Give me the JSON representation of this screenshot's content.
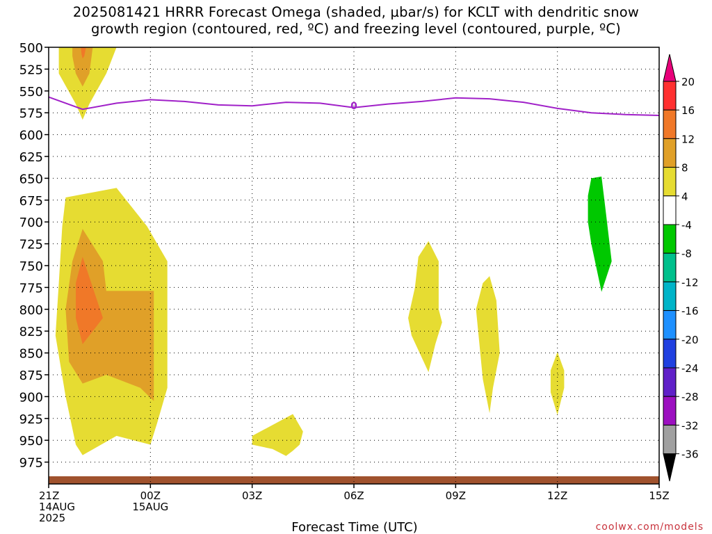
{
  "title": {
    "line1": "2025081421 HRRR Forecast Omega (shaded, µbar/s) for KCLT with dendritic snow",
    "line2": "growth region (contoured, red, ºC) and freezing level (contoured, purple, ºC)"
  },
  "credit": "coolwx.com/models",
  "chart_data": {
    "type": "heatmap",
    "title": "2025081421 HRRR Forecast Omega (shaded, µbar/s) for KCLT with dendritic snow growth region (contoured, red, ºC) and freezing level (contoured, purple, ºC)",
    "xlabel": "Forecast Time (UTC)",
    "ylabel": "",
    "x_range_hours": [
      0,
      18
    ],
    "y_range_hpa": [
      1000,
      500
    ],
    "y_reversed": true,
    "grid": true,
    "x_ticks": [
      {
        "hour": 0,
        "lines": [
          "21Z",
          "14AUG",
          "2025"
        ]
      },
      {
        "hour": 3,
        "lines": [
          "00Z",
          "15AUG"
        ]
      },
      {
        "hour": 6,
        "lines": [
          "03Z"
        ]
      },
      {
        "hour": 9,
        "lines": [
          "06Z"
        ]
      },
      {
        "hour": 12,
        "lines": [
          "09Z"
        ]
      },
      {
        "hour": 15,
        "lines": [
          "12Z"
        ]
      },
      {
        "hour": 18,
        "lines": [
          "15Z"
        ]
      }
    ],
    "y_ticks": [
      500,
      525,
      550,
      575,
      600,
      625,
      650,
      675,
      700,
      725,
      750,
      775,
      800,
      825,
      850,
      875,
      900,
      925,
      950,
      975
    ],
    "freezing_level": {
      "label": "0",
      "color": "#a020c8",
      "points": [
        [
          0,
          557
        ],
        [
          1,
          571
        ],
        [
          2,
          564
        ],
        [
          3,
          560
        ],
        [
          4,
          562
        ],
        [
          5,
          566
        ],
        [
          6,
          567
        ],
        [
          7,
          563
        ],
        [
          8,
          564
        ],
        [
          9,
          569
        ],
        [
          10,
          565
        ],
        [
          11,
          562
        ],
        [
          12,
          558
        ],
        [
          13,
          559
        ],
        [
          14,
          563
        ],
        [
          15,
          570
        ],
        [
          16,
          575
        ],
        [
          17,
          577
        ],
        [
          18,
          578
        ]
      ]
    },
    "surface_color": "#a0522d",
    "colorbar": {
      "levels": [
        20,
        16,
        12,
        8,
        4,
        -4,
        -8,
        -12,
        -16,
        -20,
        -24,
        -28,
        -32,
        -36
      ],
      "colors": [
        "#e8007a",
        "#ff3030",
        "#f07828",
        "#e0a028",
        "#e6dc32",
        "#ffffff",
        "#00c800",
        "#00c08c",
        "#00b4c8",
        "#1e90ff",
        "#2040e0",
        "#6020c8",
        "#9c10c0",
        "#a0a0a0",
        "#000000"
      ]
    },
    "omega_regions": [
      {
        "level": "4-8",
        "color": "#e6dc32",
        "points": [
          [
            0.3,
            500
          ],
          [
            2,
            500
          ],
          [
            1.7,
            530
          ],
          [
            1.2,
            565
          ],
          [
            1,
            583
          ],
          [
            0.8,
            565
          ],
          [
            0.3,
            530
          ]
        ]
      },
      {
        "level": "8-12",
        "color": "#e0a028",
        "points": [
          [
            0.7,
            500
          ],
          [
            1.3,
            500
          ],
          [
            1.2,
            530
          ],
          [
            1,
            545
          ],
          [
            0.8,
            530
          ],
          [
            0.7,
            510
          ]
        ]
      },
      {
        "level": "12-16",
        "color": "#f07828",
        "points": [
          [
            0.95,
            500
          ],
          [
            1.1,
            500
          ],
          [
            1.05,
            510
          ],
          [
            1,
            513
          ],
          [
            0.97,
            508
          ]
        ]
      },
      {
        "level": "4-8",
        "color": "#e6dc32",
        "points": [
          [
            0.5,
            672
          ],
          [
            2,
            661
          ],
          [
            2.9,
            705
          ],
          [
            3.5,
            745
          ],
          [
            3.5,
            850
          ],
          [
            3.5,
            890
          ],
          [
            3.2,
            930
          ],
          [
            3,
            955
          ],
          [
            2,
            945
          ],
          [
            1,
            967
          ],
          [
            0.8,
            955
          ],
          [
            0.5,
            900
          ],
          [
            0.2,
            830
          ],
          [
            0.3,
            770
          ],
          [
            0.4,
            705
          ]
        ]
      },
      {
        "level": "8-12",
        "color": "#e0a028",
        "points": [
          [
            1,
            708
          ],
          [
            1.6,
            745
          ],
          [
            1.7,
            779
          ],
          [
            3.1,
            779
          ],
          [
            3.1,
            905
          ],
          [
            2.7,
            890
          ],
          [
            1.7,
            875
          ],
          [
            1,
            885
          ],
          [
            0.6,
            860
          ],
          [
            0.5,
            800
          ],
          [
            0.7,
            745
          ]
        ]
      },
      {
        "level": "12-16",
        "color": "#f07828",
        "points": [
          [
            1,
            740
          ],
          [
            1.3,
            775
          ],
          [
            1.6,
            810
          ],
          [
            1,
            840
          ],
          [
            0.8,
            810
          ],
          [
            0.8,
            770
          ]
        ]
      },
      {
        "level": "4-8",
        "color": "#e6dc32",
        "points": [
          [
            6,
            945
          ],
          [
            7.2,
            920
          ],
          [
            7.5,
            940
          ],
          [
            7.4,
            955
          ],
          [
            7.2,
            962
          ],
          [
            7,
            968
          ],
          [
            6.6,
            960
          ],
          [
            6,
            955
          ]
        ]
      },
      {
        "level": "4-8",
        "color": "#e6dc32",
        "points": [
          [
            10.9,
            740
          ],
          [
            11.2,
            722
          ],
          [
            11.5,
            745
          ],
          [
            11.5,
            800
          ],
          [
            11.6,
            815
          ],
          [
            11.4,
            840
          ],
          [
            11.2,
            872
          ],
          [
            10.7,
            830
          ],
          [
            10.6,
            810
          ],
          [
            10.8,
            775
          ]
        ]
      },
      {
        "level": "4-8",
        "color": "#e6dc32",
        "points": [
          [
            12.8,
            770
          ],
          [
            13.0,
            762
          ],
          [
            13.2,
            790
          ],
          [
            13.3,
            850
          ],
          [
            13.1,
            890
          ],
          [
            13,
            919
          ],
          [
            12.8,
            880
          ],
          [
            12.7,
            840
          ],
          [
            12.6,
            800
          ]
        ]
      },
      {
        "level": "4-8",
        "color": "#e6dc32",
        "points": [
          [
            15,
            849
          ],
          [
            15.2,
            870
          ],
          [
            15.2,
            890
          ],
          [
            15,
            921
          ],
          [
            14.8,
            895
          ],
          [
            14.8,
            870
          ]
        ]
      },
      {
        "level": "-8--4",
        "color": "#00c800",
        "points": [
          [
            16,
            650
          ],
          [
            16.3,
            648
          ],
          [
            16.4,
            680
          ],
          [
            16.6,
            745
          ],
          [
            16.3,
            780
          ],
          [
            16,
            725
          ],
          [
            15.9,
            700
          ],
          [
            15.9,
            670
          ]
        ]
      }
    ]
  }
}
